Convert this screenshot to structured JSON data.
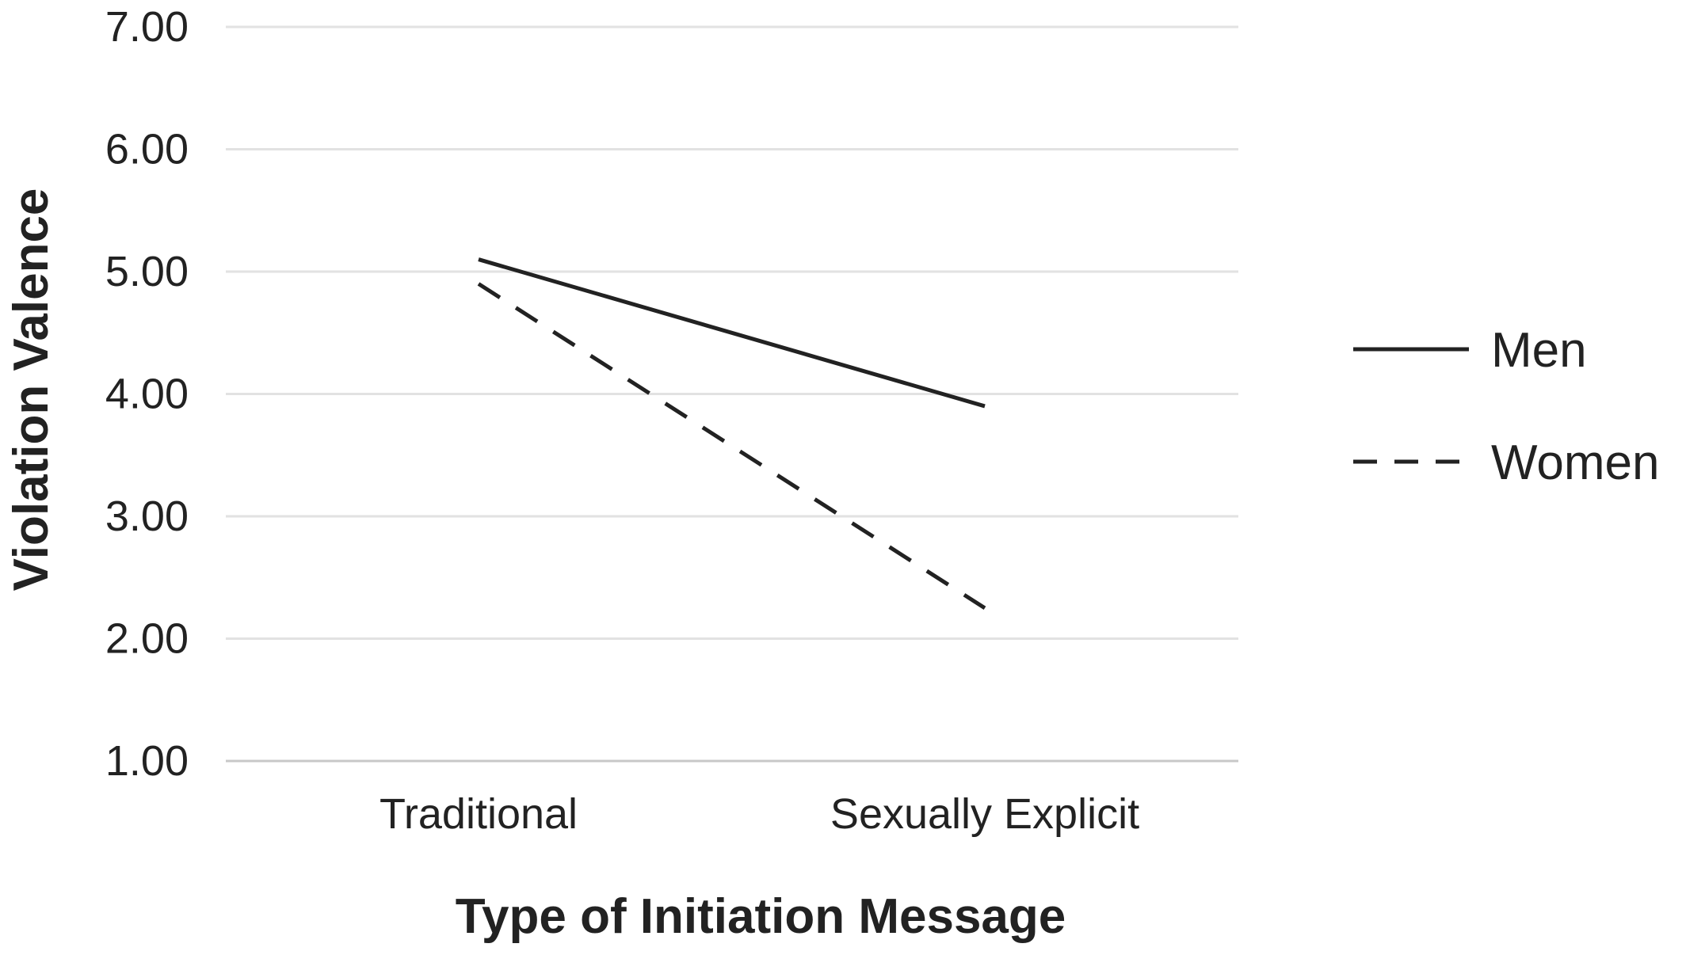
{
  "chart_data": {
    "type": "line",
    "title": "",
    "xlabel": "Type of Initiation Message",
    "ylabel": "Violation Valence",
    "categories": [
      "Traditional",
      "Sexually Explicit"
    ],
    "ylim": [
      1.0,
      7.0
    ],
    "yticks": [
      "1.00",
      "2.00",
      "3.00",
      "4.00",
      "5.00",
      "6.00",
      "7.00"
    ],
    "grid": true,
    "legend_position": "right",
    "series": [
      {
        "name": "Men",
        "values": [
          5.1,
          3.9
        ],
        "style": "solid",
        "color": "#222222"
      },
      {
        "name": "Women",
        "values": [
          4.9,
          2.25
        ],
        "style": "dashed",
        "color": "#222222"
      }
    ]
  }
}
